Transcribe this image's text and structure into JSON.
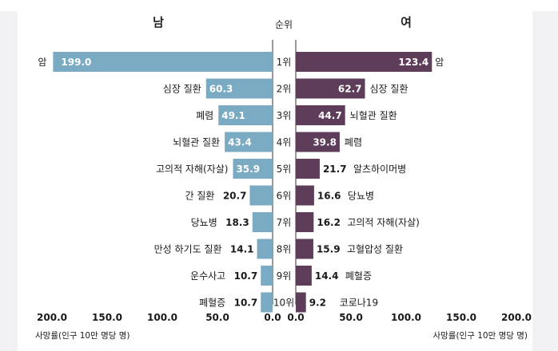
{
  "chart_data": {
    "type": "bar",
    "layout": "butterfly",
    "rank_header": "순위",
    "ranks": [
      "1위",
      "2위",
      "3위",
      "4위",
      "5위",
      "6위",
      "7위",
      "8위",
      "9위",
      "10위"
    ],
    "male": {
      "title": "남",
      "color": "#7aabc2",
      "xlabel": "사망률(인구 10만 명당 명)",
      "xlim": [
        0,
        200
      ],
      "ticks": [
        "200.0",
        "150.0",
        "100.0",
        "50.0",
        "0.0"
      ],
      "categories": [
        "암",
        "심장 질환",
        "폐렴",
        "뇌혈관 질환",
        "고의적 자해(자살)",
        "간 질환",
        "당뇨병",
        "만성 하기도 질환",
        "운수사고",
        "폐혈증"
      ],
      "values": [
        199.0,
        60.3,
        49.1,
        43.4,
        35.9,
        20.7,
        18.3,
        14.1,
        10.7,
        10.7
      ],
      "value_labels": [
        "199.0",
        "60.3",
        "49.1",
        "43.4",
        "35.9",
        "20.7",
        "18.3",
        "14.1",
        "10.7",
        "10.7"
      ]
    },
    "female": {
      "title": "여",
      "color": "#5e3d5a",
      "xlabel": "사망률(인구 10만 명당 명)",
      "xlim": [
        0,
        200
      ],
      "ticks": [
        "0.0",
        "50.0",
        "100.0",
        "150.0",
        "200.0"
      ],
      "categories": [
        "암",
        "심장 질환",
        "뇌혈관 질환",
        "폐렴",
        "알츠하이머병",
        "당뇨병",
        "고의적 자해(자살)",
        "고혈압성 질환",
        "폐혈증",
        "코로나19"
      ],
      "values": [
        123.4,
        62.7,
        44.7,
        39.8,
        21.7,
        16.6,
        16.2,
        15.9,
        14.4,
        9.2
      ],
      "value_labels": [
        "123.4",
        "62.7",
        "44.7",
        "39.8",
        "21.7",
        "16.6",
        "16.2",
        "15.9",
        "14.4",
        "9.2"
      ]
    }
  }
}
